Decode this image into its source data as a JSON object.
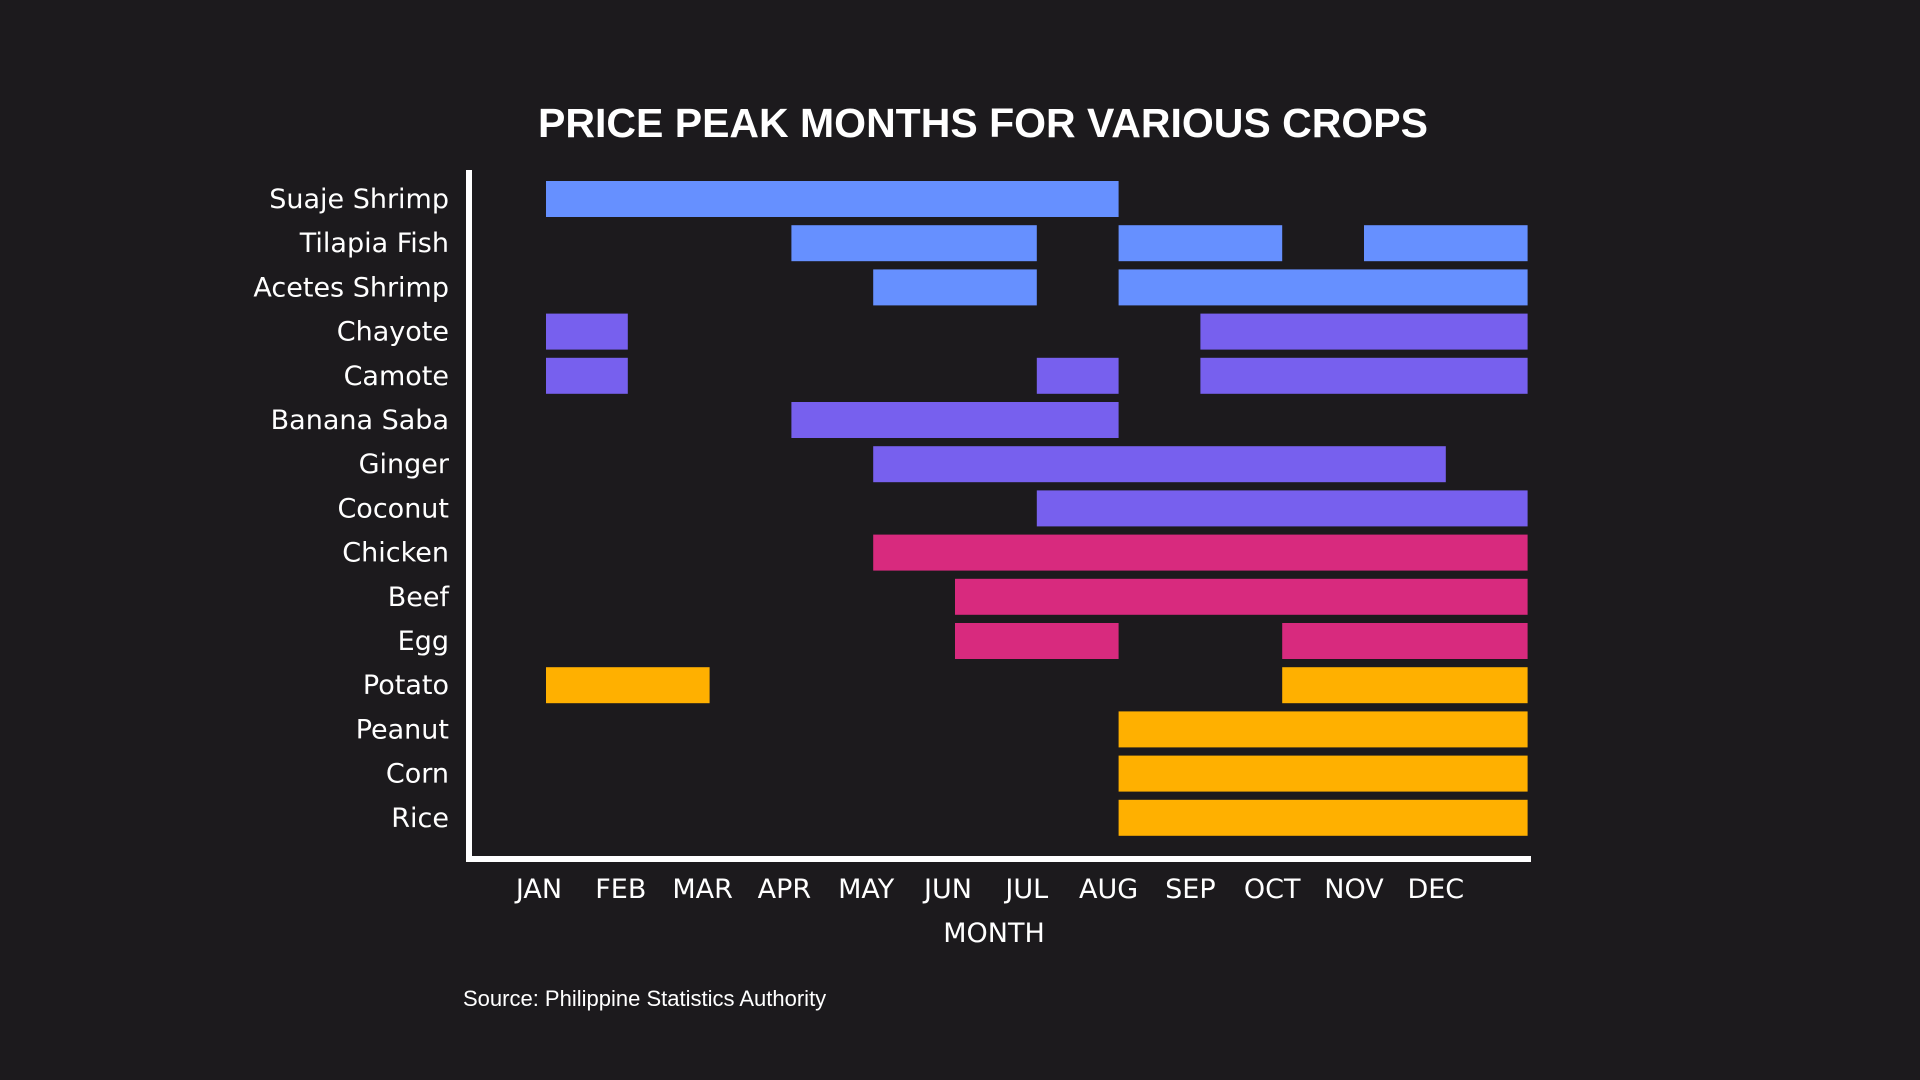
{
  "chart_data": {
    "type": "gantt-bar",
    "title": "PRICE PEAK MONTHS FOR VARIOUS CROPS",
    "xlabel": "MONTH",
    "ylabel": "",
    "x_ticks": [
      "JAN",
      "FEB",
      "MAR",
      "APR",
      "MAY",
      "JUN",
      "JUL",
      "AUG",
      "SEP",
      "OCT",
      "NOV",
      "DEC"
    ],
    "source": "Source: Philippine Statistics Authority",
    "grid": false,
    "legend": "none",
    "colors": {
      "blue": "#6690ff",
      "purple": "#7760ee",
      "pink": "#d82a7e",
      "orange": "#ffb000",
      "axis": "#ffffff",
      "background": "#1c1a1d"
    },
    "rows": [
      {
        "label": "Suaje Shrimp",
        "color": "blue",
        "segments": [
          [
            1,
            8
          ]
        ]
      },
      {
        "label": "Tilapia Fish",
        "color": "blue",
        "segments": [
          [
            4,
            7
          ],
          [
            8,
            10
          ],
          [
            11,
            13
          ]
        ]
      },
      {
        "label": "Acetes Shrimp",
        "color": "blue",
        "segments": [
          [
            5,
            7
          ],
          [
            8,
            13
          ]
        ]
      },
      {
        "label": "Chayote",
        "color": "purple",
        "segments": [
          [
            1,
            2
          ],
          [
            9,
            13
          ]
        ]
      },
      {
        "label": "Camote",
        "color": "purple",
        "segments": [
          [
            1,
            2
          ],
          [
            7,
            8
          ],
          [
            9,
            13
          ]
        ]
      },
      {
        "label": "Banana Saba",
        "color": "purple",
        "segments": [
          [
            4,
            8
          ]
        ]
      },
      {
        "label": "Ginger",
        "color": "purple",
        "segments": [
          [
            5,
            12
          ]
        ]
      },
      {
        "label": "Coconut",
        "color": "purple",
        "segments": [
          [
            7,
            13
          ]
        ]
      },
      {
        "label": "Chicken",
        "color": "pink",
        "segments": [
          [
            5,
            13
          ]
        ]
      },
      {
        "label": "Beef",
        "color": "pink",
        "segments": [
          [
            6,
            13
          ]
        ]
      },
      {
        "label": "Egg",
        "color": "pink",
        "segments": [
          [
            6,
            8
          ],
          [
            10,
            13
          ]
        ]
      },
      {
        "label": "Potato",
        "color": "orange",
        "segments": [
          [
            1,
            3
          ],
          [
            10,
            13
          ]
        ]
      },
      {
        "label": "Peanut",
        "color": "orange",
        "segments": [
          [
            8,
            13
          ]
        ]
      },
      {
        "label": "Corn",
        "color": "orange",
        "segments": [
          [
            8,
            13
          ]
        ]
      },
      {
        "label": "Rice",
        "color": "orange",
        "segments": [
          [
            8,
            13
          ]
        ]
      }
    ]
  }
}
